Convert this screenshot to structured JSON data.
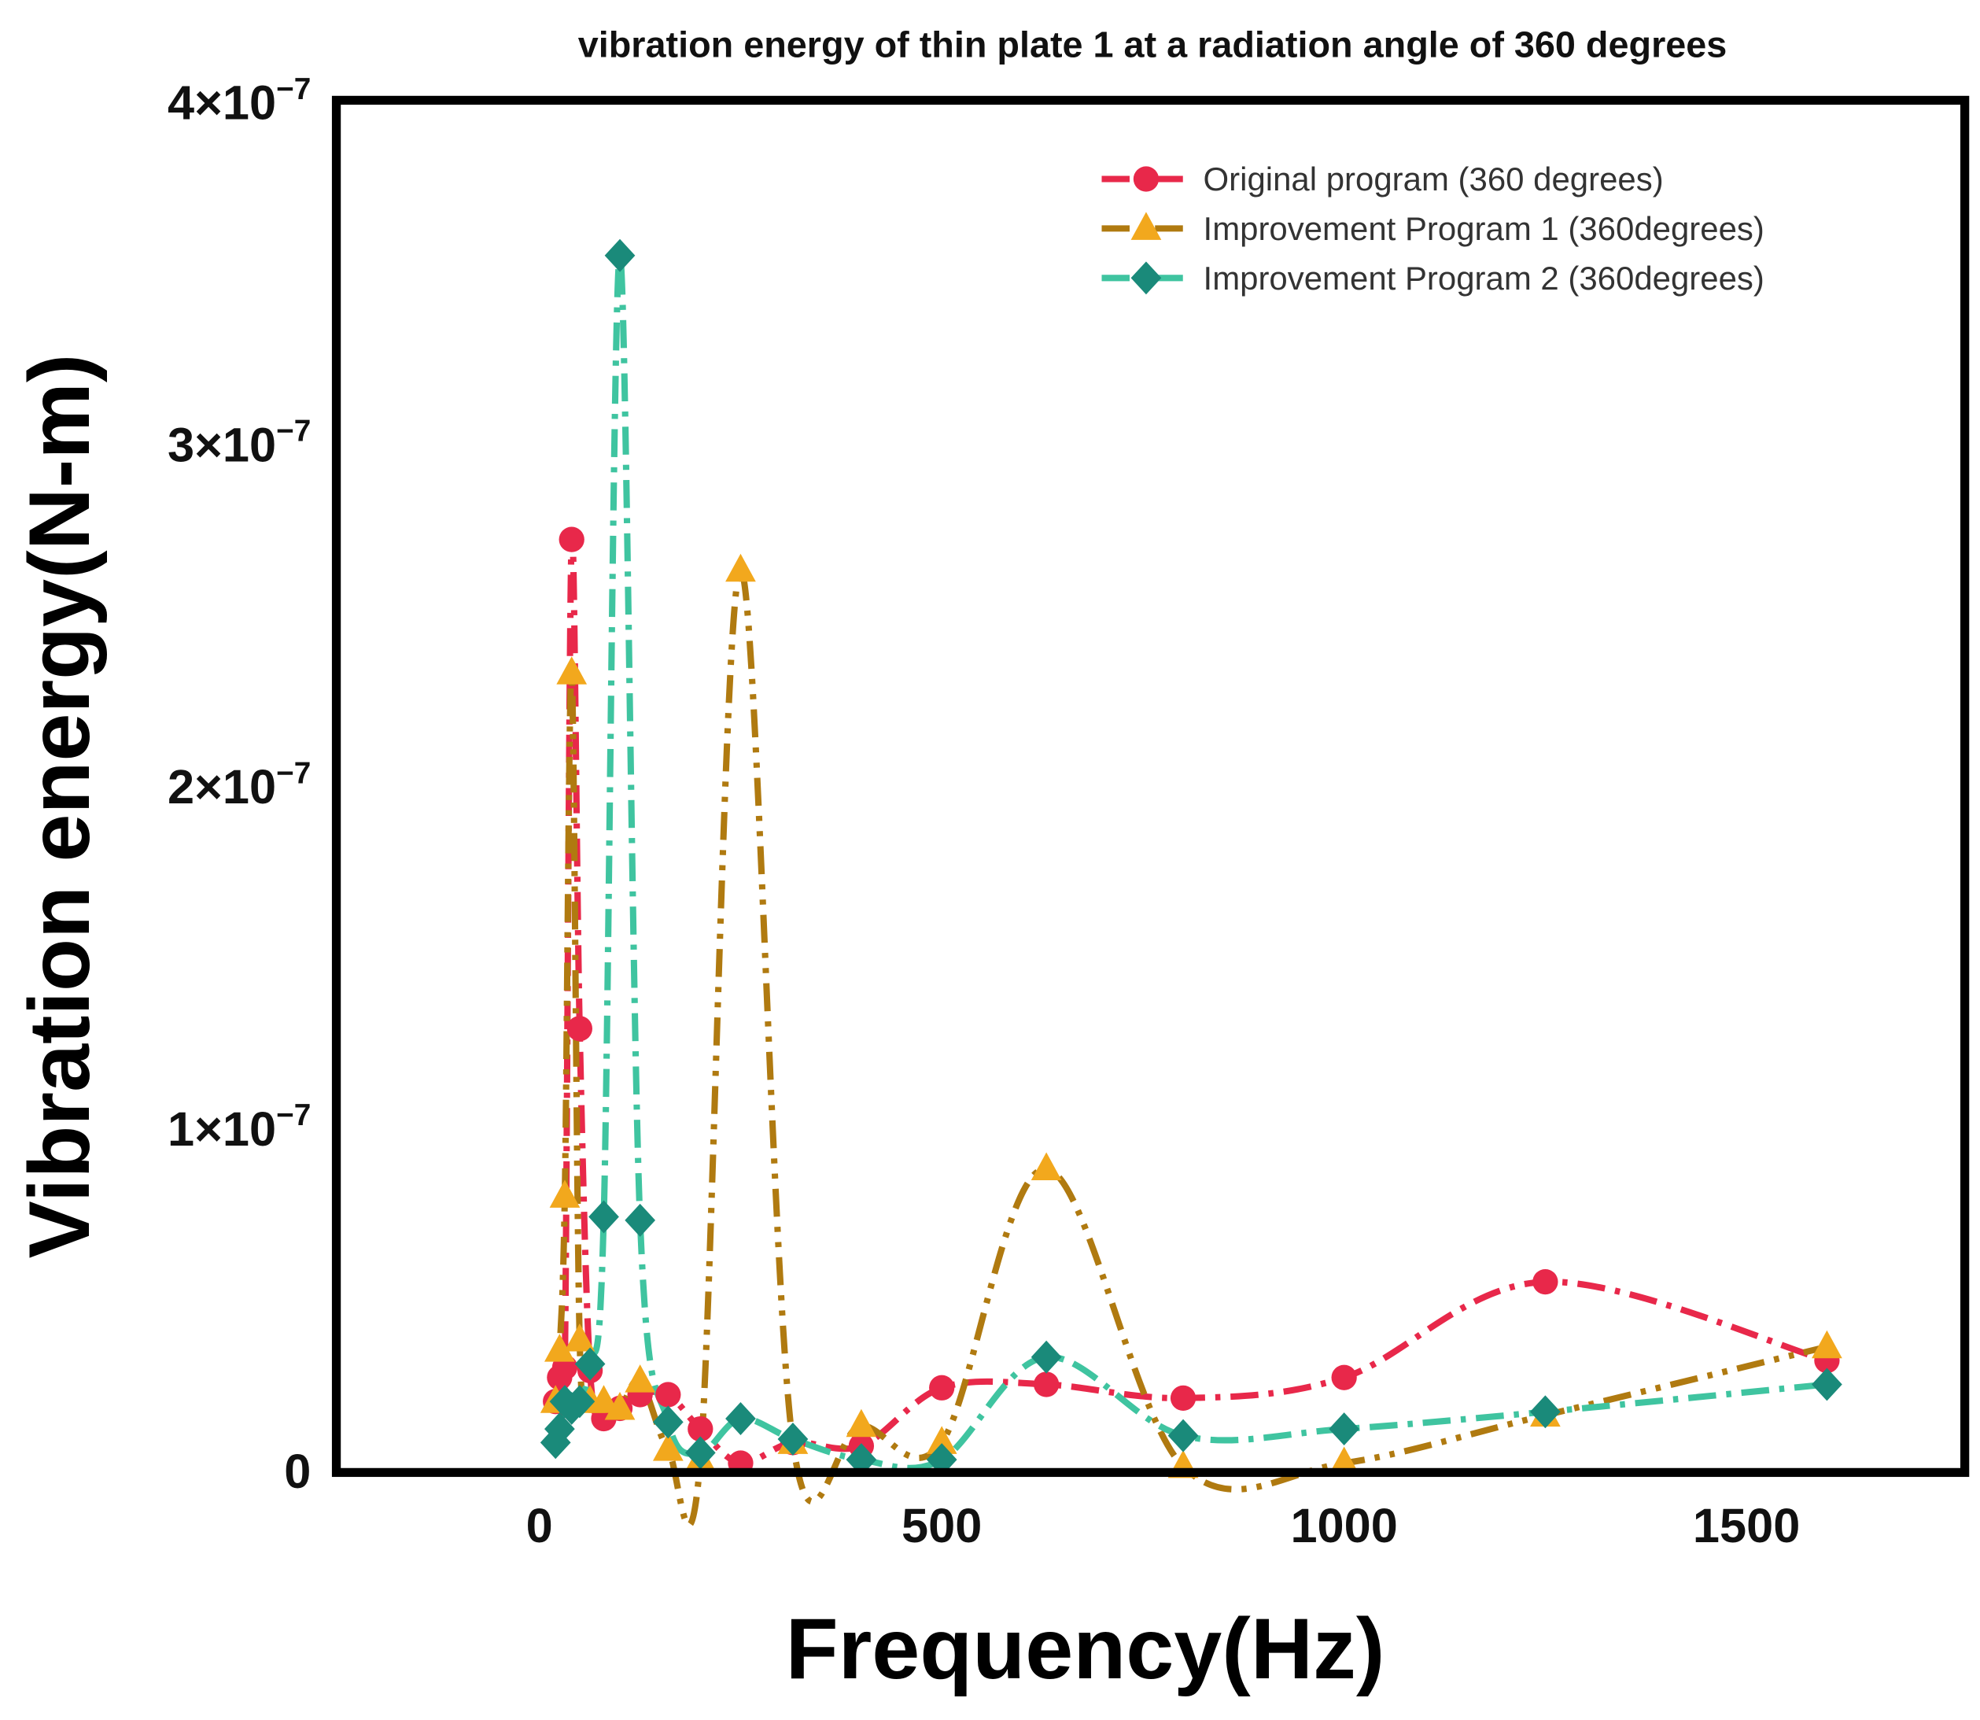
{
  "chart_data": {
    "type": "line",
    "title": "vibration energy of thin plate 1 at a radiation angle of 360 degrees",
    "xlabel": "Frequency(Hz)",
    "ylabel": "Vibration energy(N-m)",
    "xlim": [
      -250,
      1780
    ],
    "ylim": [
      0,
      4e-07
    ],
    "grid": false,
    "legend_position": "top-right",
    "x_ticks": [
      {
        "value": 0,
        "label": "0"
      },
      {
        "value": 500,
        "label": "500"
      },
      {
        "value": 1000,
        "label": "1000"
      },
      {
        "value": 1500,
        "label": "1500"
      }
    ],
    "y_ticks": [
      {
        "value": 0,
        "label": "0",
        "exp": ""
      },
      {
        "value": 1e-07,
        "label": "1×10",
        "exp": "−7"
      },
      {
        "value": 2e-07,
        "label": "2×10",
        "exp": "−7"
      },
      {
        "value": 3e-07,
        "label": "3×10",
        "exp": "−7"
      },
      {
        "value": 4e-07,
        "label": "4×10",
        "exp": "−7"
      }
    ],
    "x": [
      20,
      25,
      31.5,
      40,
      50,
      63,
      80,
      100,
      125,
      160,
      200,
      250,
      315,
      400,
      500,
      630,
      800,
      1000,
      1250,
      1600
    ],
    "series": [
      {
        "name": "Original program (360 degrees)",
        "marker": "circle",
        "line_color": "#e8284a",
        "marker_color": "#e8284a",
        "dash": "dash-dot",
        "values": [
          2e-08,
          2.7e-08,
          3e-08,
          2.72e-07,
          1.29e-07,
          2.9e-08,
          1.5e-08,
          1.8e-08,
          2.2e-08,
          2.2e-08,
          1.2e-08,
          2e-09,
          8e-09,
          7e-09,
          2.4e-08,
          2.5e-08,
          2.1e-08,
          2.7e-08,
          5.5e-08,
          3.2e-08
        ]
      },
      {
        "name": "Improvement Program 1 (360degrees)",
        "marker": "triangle",
        "line_color": "#b07a10",
        "marker_color": "#f2a81d",
        "dash": "dash-dot-dot",
        "values": [
          2e-08,
          3.5e-08,
          8e-08,
          2.33e-07,
          3.8e-08,
          2e-08,
          2e-08,
          1.8e-08,
          2.6e-08,
          6e-09,
          3e-09,
          2.63e-07,
          8e-09,
          1.3e-08,
          8e-09,
          8.8e-08,
          1e-09,
          2e-09,
          1.6e-08,
          3.6e-08
        ]
      },
      {
        "name": "Improvement Program 2 (360degrees)",
        "marker": "diamond",
        "line_color": "#3fc4a0",
        "marker_color": "#1a8a7a",
        "dash": "dash-dot",
        "values": [
          8e-09,
          1.2e-08,
          2e-08,
          1.8e-08,
          2e-08,
          3.1e-08,
          7.4e-08,
          3.55e-07,
          7.3e-08,
          1.4e-08,
          5e-09,
          1.5e-08,
          9e-09,
          3e-09,
          3e-09,
          3.3e-08,
          1e-08,
          1.2e-08,
          1.7e-08,
          2.5e-08
        ]
      }
    ]
  }
}
